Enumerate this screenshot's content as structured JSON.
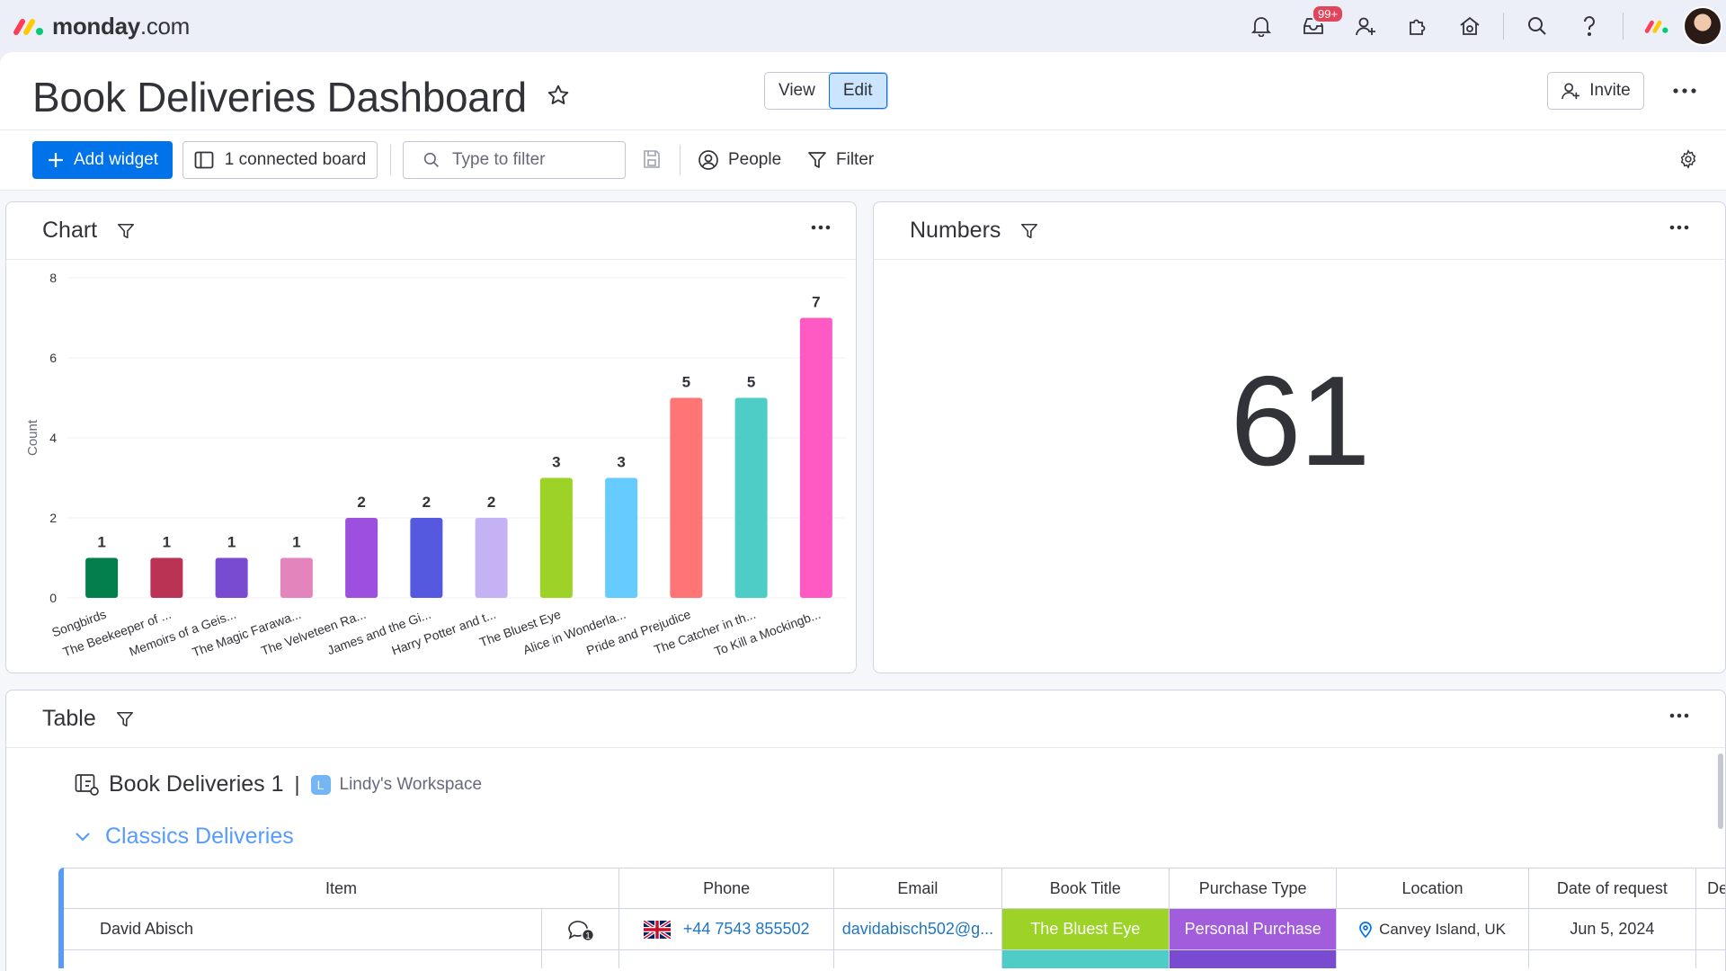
{
  "app": {
    "logo_text_bold": "monday",
    "logo_text_rest": ".com",
    "inbox_badge": "99+"
  },
  "header": {
    "title": "Book Deliveries Dashboard",
    "view_label": "View",
    "edit_label": "Edit",
    "invite_label": "Invite"
  },
  "toolbar": {
    "add_widget_label": "Add widget",
    "connected_boards_label": "1 connected board",
    "filter_placeholder": "Type to filter",
    "people_label": "People",
    "filter_label": "Filter"
  },
  "chart_widget": {
    "title": "Chart",
    "y_axis_label": "Count"
  },
  "numbers_widget": {
    "title": "Numbers",
    "value": "61"
  },
  "chart_data": {
    "type": "bar",
    "ylabel": "Count",
    "xlabel": "",
    "ylim": [
      0,
      8
    ],
    "yticks": [
      "0",
      "2",
      "4",
      "6",
      "8"
    ],
    "grid": true,
    "categories": [
      "Songbirds",
      "The Beekeeper of ...",
      "Memoirs of a Geis...",
      "The Magic Farawa...",
      "The Velveteen Ra...",
      "James and the Gi...",
      "Harry Potter and t...",
      "The Bluest Eye",
      "Alice in Wonderla...",
      "Pride and Prejudice",
      "The Catcher in th...",
      "To Kill a Mockingb..."
    ],
    "values": [
      1,
      1,
      1,
      1,
      2,
      2,
      2,
      3,
      3,
      5,
      5,
      7
    ],
    "colors": [
      "#037f4c",
      "#bb3354",
      "#784bd1",
      "#e484bd",
      "#9d50dd",
      "#5559df",
      "#c5b2f4",
      "#9cd326",
      "#66ccff",
      "#ff7575",
      "#4eccc6",
      "#ff5ac4"
    ]
  },
  "table_widget": {
    "title": "Table",
    "board_name": "Book Deliveries 1",
    "separator": "|",
    "workspace_initial": "L",
    "workspace_name": "Lindy's Workspace",
    "group_name": "Classics Deliveries",
    "columns": {
      "item": "Item",
      "phone": "Phone",
      "email": "Email",
      "book_title": "Book Title",
      "purchase_type": "Purchase Type",
      "location": "Location",
      "date": "Date of request",
      "de": "De"
    },
    "rows": [
      {
        "item": "David Abisch",
        "update_count": "1",
        "phone": "+44 7543 855502",
        "email": "davidabisch502@g...",
        "book_title": "The Bluest Eye",
        "purchase_type": "Personal Purchase",
        "location": "Canvey Island, UK",
        "date": "Jun 5, 2024"
      }
    ]
  }
}
